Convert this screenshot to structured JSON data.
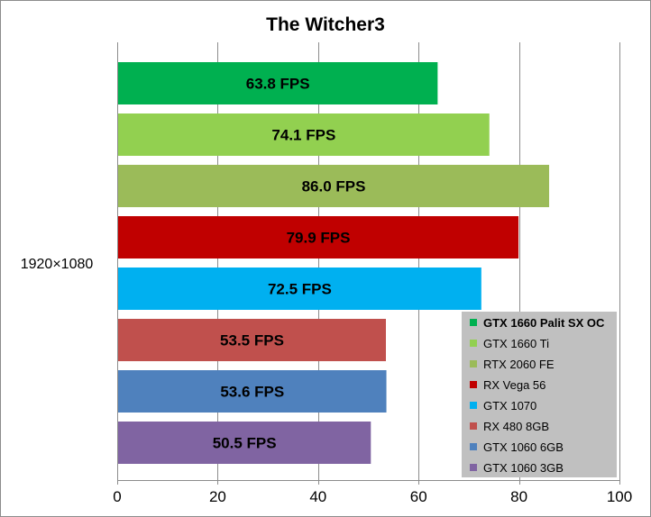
{
  "chart_data": {
    "type": "bar",
    "orientation": "horizontal",
    "title": "The Witcher3",
    "categories": [
      "1920×1080"
    ],
    "xlim": [
      0,
      100
    ],
    "xticks": [
      0,
      20,
      40,
      60,
      80,
      100
    ],
    "grid": true,
    "legend_position": "bottom-right",
    "series": [
      {
        "name": "GTX 1660 Palit SX OC",
        "values": [
          63.8
        ],
        "label": "63.8 FPS",
        "color": "#00b050",
        "bold": true
      },
      {
        "name": "GTX 1660 Ti",
        "values": [
          74.1
        ],
        "label": "74.1 FPS",
        "color": "#92d050",
        "bold": false
      },
      {
        "name": "RTX 2060 FE",
        "values": [
          86.0
        ],
        "label": "86.0 FPS",
        "color": "#9bbb59",
        "bold": false
      },
      {
        "name": "RX Vega 56",
        "values": [
          79.9
        ],
        "label": "79.9 FPS",
        "color": "#c00000",
        "bold": false
      },
      {
        "name": "GTX 1070",
        "values": [
          72.5
        ],
        "label": "72.5 FPS",
        "color": "#00b0f0",
        "bold": false
      },
      {
        "name": "RX 480 8GB",
        "values": [
          53.5
        ],
        "label": "53.5 FPS",
        "color": "#c0504d",
        "bold": false
      },
      {
        "name": "GTX 1060 6GB",
        "values": [
          53.6
        ],
        "label": "53.6 FPS",
        "color": "#4f81bd",
        "bold": false
      },
      {
        "name": "GTX 1060 3GB",
        "values": [
          50.5
        ],
        "label": "50.5 FPS",
        "color": "#8064a2",
        "bold": false
      }
    ]
  }
}
